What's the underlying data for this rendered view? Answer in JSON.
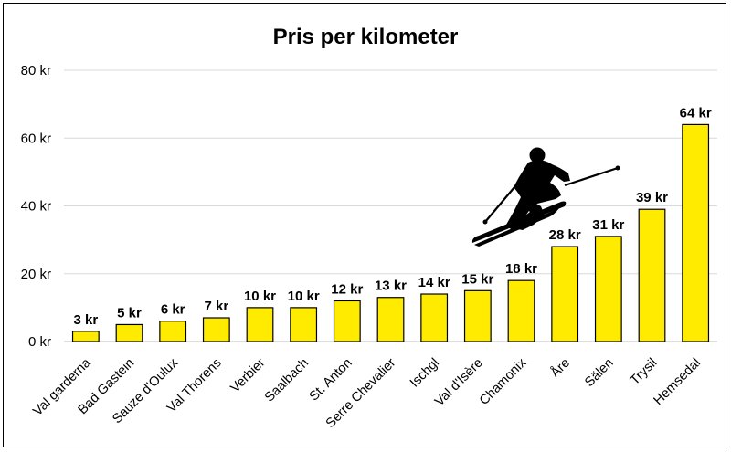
{
  "chart_data": {
    "type": "bar",
    "title": "Pris per kilometer",
    "xlabel": "",
    "ylabel": "",
    "categories": [
      "Val garderna",
      "Bad Gastein",
      "Sauze d'Oulux",
      "Val Thorens",
      "Verbier",
      "Saalbach",
      "St. Anton",
      "Serre Chevalier",
      "Ischgl",
      "Val d'Isère",
      "Chamonix",
      "Åre",
      "Sälen",
      "Trysil",
      "Hemsedal"
    ],
    "values": [
      3,
      5,
      6,
      7,
      10,
      10,
      12,
      13,
      14,
      15,
      18,
      28,
      31,
      39,
      64
    ],
    "value_labels": [
      "3 kr",
      "5 kr",
      "6 kr",
      "7 kr",
      "10 kr",
      "10 kr",
      "12 kr",
      "13 kr",
      "14 kr",
      "15 kr",
      "18 kr",
      "28 kr",
      "31 kr",
      "39 kr",
      "64 kr"
    ],
    "yticks": [
      0,
      20,
      40,
      60,
      80
    ],
    "ytick_labels": [
      "0 kr",
      "20 kr",
      "40 kr",
      "60 kr",
      "80 kr"
    ],
    "ylim": [
      0,
      80
    ],
    "grid": true,
    "legend": "none",
    "bar_color": "#FFEB00",
    "bar_edge_color": "#000000",
    "grid_color": "#D9D9D9"
  },
  "decoration": {
    "icon": "skier-silhouette-icon",
    "color": "#000000"
  }
}
